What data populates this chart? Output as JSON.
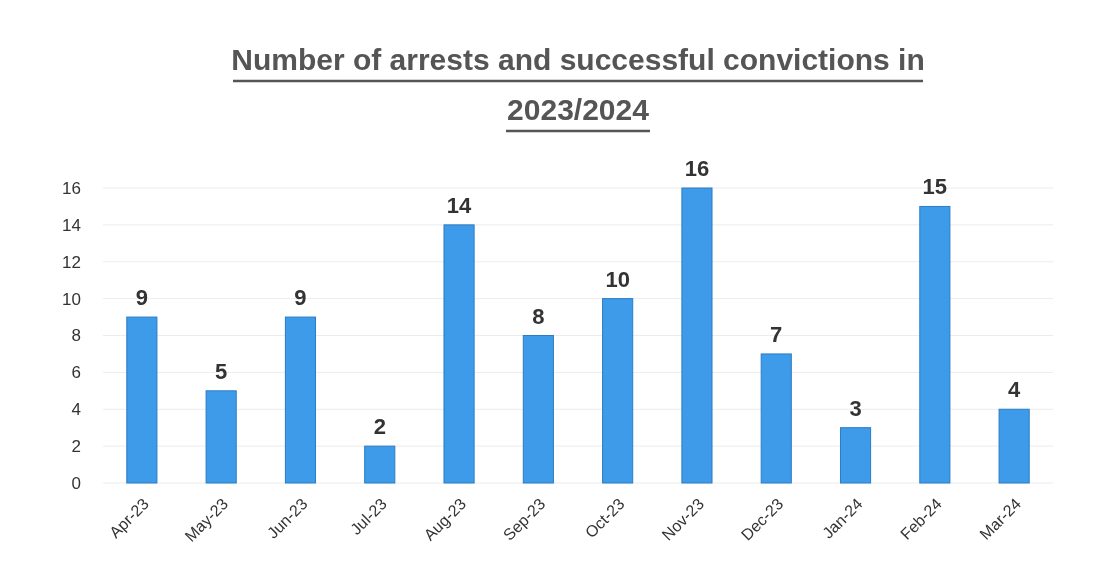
{
  "chart_data": {
    "type": "bar",
    "title": "Number of arrests and successful convictions in 2023/2024",
    "categories": [
      "Apr-23",
      "May-23",
      "Jun-23",
      "Jul-23",
      "Aug-23",
      "Sep-23",
      "Oct-23",
      "Nov-23",
      "Dec-23",
      "Jan-24",
      "Feb-24",
      "Mar-24"
    ],
    "values": [
      9,
      5,
      9,
      2,
      14,
      8,
      10,
      16,
      7,
      3,
      15,
      4
    ],
    "color": "#3d9be9",
    "ylim": [
      0,
      16
    ],
    "yticks": [
      0,
      2,
      4,
      6,
      8,
      10,
      12,
      14,
      16
    ],
    "grid": "y",
    "data_labels": true
  }
}
